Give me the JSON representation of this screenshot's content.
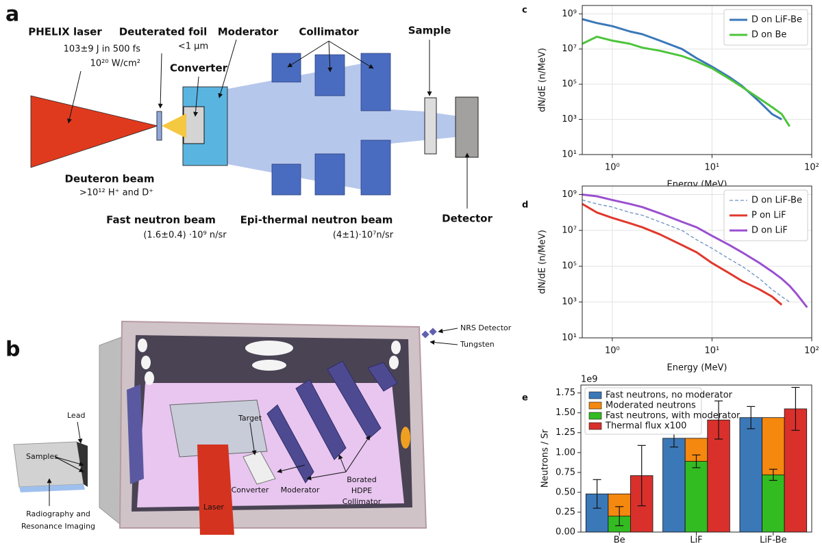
{
  "panel_a": {
    "label": "a",
    "laser": {
      "name": "PHELIX laser",
      "energy": "103±9 J in 500 fs",
      "intensity": "10²⁰ W/cm²"
    },
    "foil": {
      "name": "Deuterated foil",
      "thickness": "<1 µm"
    },
    "converter": "Converter",
    "moderator": "Moderator",
    "collimator": "Collimator",
    "sample": "Sample",
    "detector": "Detector",
    "deuteron_beam": {
      "name": "Deuteron beam",
      "content": ">10¹²  H⁺ and D⁺"
    },
    "fast_beam": {
      "name": "Fast neutron beam",
      "flux": "(1.6±0.4) ·10⁹ n/sr"
    },
    "epithermal_beam": {
      "name": "Epi-thermal neutron beam",
      "flux": "(4±1)·10⁷n/sr"
    }
  },
  "panel_b": {
    "label": "b",
    "nrs": "NRS Detector",
    "tungsten": "Tungsten",
    "lead": "Lead",
    "samples": "Samples",
    "imaging": [
      "Radiography and",
      "Resonance Imaging"
    ],
    "target": "Target",
    "laser": "Laser",
    "converter": "Converter",
    "moderator": "Moderator",
    "collimator": [
      "Borated",
      "HDPE",
      "Collimator"
    ]
  },
  "chart_data": [
    {
      "type": "line",
      "panel": "c",
      "x_label": "Energy (MeV)",
      "y_label": "dN/dE (n/MeV)",
      "xscale": "log",
      "yscale": "log",
      "grid": true,
      "legend": "upper right",
      "xlim": [
        0.5,
        100
      ],
      "ylim": [
        10,
        3000000000
      ],
      "xticks": [
        {
          "value": 1,
          "label": "10⁰"
        },
        {
          "value": 10,
          "label": "10¹"
        },
        {
          "value": 100,
          "label": "10²"
        }
      ],
      "yticks": [
        {
          "value": 10,
          "label": "10¹"
        },
        {
          "value": 1000,
          "label": "10³"
        },
        {
          "value": 100000,
          "label": "10⁵"
        },
        {
          "value": 10000000,
          "label": "10⁷"
        },
        {
          "value": 1000000000,
          "label": "10⁹"
        }
      ],
      "x": [
        0.5,
        0.7,
        1,
        1.5,
        2,
        3,
        5,
        7,
        10,
        15,
        20,
        30,
        40,
        50,
        60
      ],
      "series": [
        {
          "name": "D on LiF-Be",
          "color": "#3b78b8",
          "style": "solid",
          "values": [
            500000000,
            300000000,
            200000000,
            100000000,
            70000000,
            30000000,
            10000000,
            3000000,
            1000000,
            250000,
            80000,
            10000,
            2000,
            1000,
            null
          ]
        },
        {
          "name": "D on Be",
          "color": "#4cc43a",
          "style": "solid",
          "values": [
            20000000,
            50000000,
            30000000,
            20000000,
            12000000,
            8000000,
            4000000,
            2000000,
            800000,
            200000,
            70000,
            15000,
            5000,
            2000,
            400
          ]
        }
      ]
    },
    {
      "type": "line",
      "panel": "d",
      "x_label": "Energy (MeV)",
      "y_label": "dN/dE (n/MeV)",
      "xscale": "log",
      "yscale": "log",
      "grid": true,
      "legend": "upper right",
      "xlim": [
        0.5,
        100
      ],
      "ylim": [
        10,
        3000000000
      ],
      "xticks": [
        {
          "value": 1,
          "label": "10⁰"
        },
        {
          "value": 10,
          "label": "10¹"
        },
        {
          "value": 100,
          "label": "10²"
        }
      ],
      "yticks": [
        {
          "value": 10,
          "label": "10¹"
        },
        {
          "value": 1000,
          "label": "10³"
        },
        {
          "value": 100000,
          "label": "10⁵"
        },
        {
          "value": 10000000,
          "label": "10⁷"
        },
        {
          "value": 1000000000,
          "label": "10⁹"
        }
      ],
      "x": [
        0.5,
        0.7,
        1,
        1.5,
        2,
        3,
        5,
        7,
        10,
        15,
        20,
        30,
        40,
        50,
        60,
        70,
        90
      ],
      "series": [
        {
          "name": "D on LiF-Be",
          "color": "#6a8fc0",
          "style": "dashed",
          "values": [
            500000000,
            300000000,
            200000000,
            100000000,
            70000000,
            30000000,
            10000000,
            3000000,
            1000000,
            250000,
            100000,
            20000,
            5000,
            2000,
            1000,
            null,
            null
          ]
        },
        {
          "name": "P on LiF",
          "color": "#e0382c",
          "style": "solid",
          "values": [
            300000000,
            100000000,
            50000000,
            25000000,
            15000000,
            6000000,
            1500000,
            600000,
            150000,
            40000,
            15000,
            5000,
            2000,
            700,
            null,
            null,
            null
          ]
        },
        {
          "name": "D on LiF",
          "color": "#9a4fd0",
          "style": "solid",
          "values": [
            1000000000,
            800000000,
            500000000,
            300000000,
            200000000,
            90000000,
            30000000,
            15000000,
            5000000,
            1500000,
            600000,
            150000,
            50000,
            20000,
            8000,
            3000,
            500
          ]
        }
      ]
    },
    {
      "type": "bar",
      "panel": "e",
      "y_label": "Neutrons / Sr",
      "y_offset": "1e9",
      "legend": "upper left",
      "ylim": [
        0,
        1.85
      ],
      "yticks": [
        {
          "value": 0,
          "label": "0.00"
        },
        0.25,
        {
          "value": 0.5,
          "label": "0.50"
        },
        0.75,
        {
          "value": 1,
          "label": "1.00"
        },
        1.25,
        {
          "value": 1.5,
          "label": "1.50"
        },
        1.75
      ],
      "categories": [
        "Be",
        "LiF",
        "LiF-Be"
      ],
      "series": [
        {
          "name": "Fast neutrons, no moderator",
          "color": "#3b78b8",
          "values": [
            0.48,
            1.18,
            1.44
          ],
          "errors": [
            0.18,
            0.11,
            0.14
          ]
        },
        {
          "name": "Moderated neutrons",
          "color": "#f5880e",
          "values": [
            0.48,
            1.18,
            1.44
          ]
        },
        {
          "name": "Fast neutrons, with moderator",
          "color": "#33bb22",
          "values": [
            0.2,
            0.89,
            0.72
          ],
          "errors": [
            0.12,
            0.08,
            0.07
          ]
        },
        {
          "name": "Thermal flux x100",
          "color": "#d9302c",
          "values": [
            0.71,
            1.41,
            1.55
          ],
          "errors": [
            0.38,
            0.24,
            0.27
          ]
        }
      ]
    }
  ]
}
